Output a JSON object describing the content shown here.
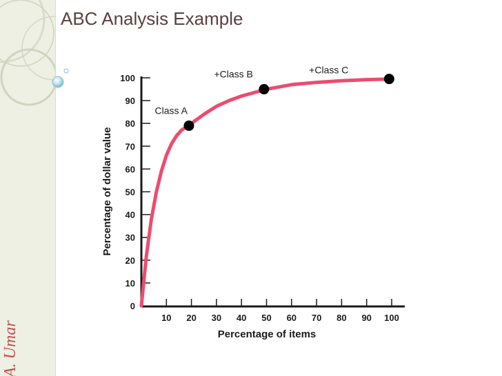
{
  "slide": {
    "title": "ABC Analysis Example",
    "author": "A. Umar"
  },
  "colors": {
    "curve": "#ee4b6e",
    "points": "#000000",
    "axis": "#1a1a1a",
    "title": "#5a4040",
    "sidebar": "#eef0e4",
    "author": "#c0504d"
  },
  "chart_data": {
    "type": "line",
    "title": "",
    "xlabel": "Percentage of items",
    "ylabel": "Percentage of dollar value",
    "xlim": [
      0,
      100
    ],
    "ylim": [
      0,
      100
    ],
    "xticks": [
      10,
      20,
      30,
      40,
      50,
      60,
      70,
      80,
      90,
      100
    ],
    "yticks": [
      0,
      10,
      20,
      30,
      40,
      50,
      60,
      70,
      80,
      90,
      100
    ],
    "grid": false,
    "series": [
      {
        "x": [
          0,
          2,
          4,
          6,
          8,
          10,
          12,
          14,
          16,
          18,
          20,
          25,
          30,
          35,
          40,
          45,
          50,
          60,
          70,
          80,
          90,
          100
        ],
        "values": [
          0,
          22,
          38,
          50,
          59,
          66,
          71,
          74.5,
          77,
          78.5,
          80,
          84,
          87.5,
          90,
          92,
          93.5,
          95,
          97,
          98,
          98.7,
          99.2,
          99.5
        ]
      }
    ],
    "points": [
      {
        "x": 19,
        "y": 79,
        "label": "Class A"
      },
      {
        "x": 49,
        "y": 95,
        "label": "+Class B"
      },
      {
        "x": 99,
        "y": 99.5,
        "label": "+Class C"
      }
    ]
  }
}
